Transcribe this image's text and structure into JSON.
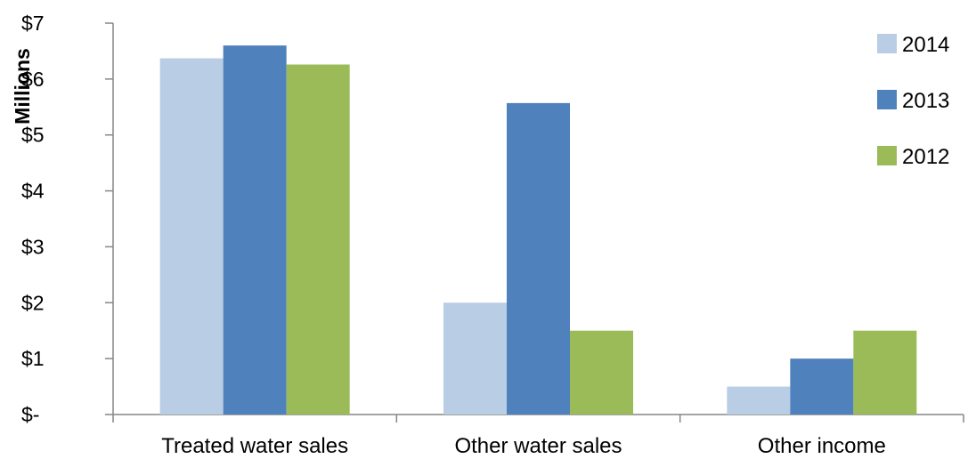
{
  "chart_data": {
    "type": "bar",
    "title": "",
    "xlabel": "",
    "ylabel": "Millions",
    "ylim": [
      0,
      7
    ],
    "yticks": [
      {
        "value": 0,
        "label": "$-"
      },
      {
        "value": 1,
        "label": "$1"
      },
      {
        "value": 2,
        "label": "$2"
      },
      {
        "value": 3,
        "label": "$3"
      },
      {
        "value": 4,
        "label": "$4"
      },
      {
        "value": 5,
        "label": "$5"
      },
      {
        "value": 6,
        "label": "$6"
      },
      {
        "value": 7,
        "label": "$7"
      }
    ],
    "categories": [
      "Treated water sales",
      "Other water sales",
      "Other income"
    ],
    "series": [
      {
        "name": "2014",
        "color": "#b9cde5",
        "values": [
          6.37,
          2.0,
          0.5
        ]
      },
      {
        "name": "2013",
        "color": "#4f81bd",
        "values": [
          6.6,
          5.57,
          1.0
        ]
      },
      {
        "name": "2012",
        "color": "#9bbb59",
        "values": [
          6.26,
          1.5,
          1.5
        ]
      }
    ],
    "grid": false,
    "legend_position": "top-right"
  }
}
